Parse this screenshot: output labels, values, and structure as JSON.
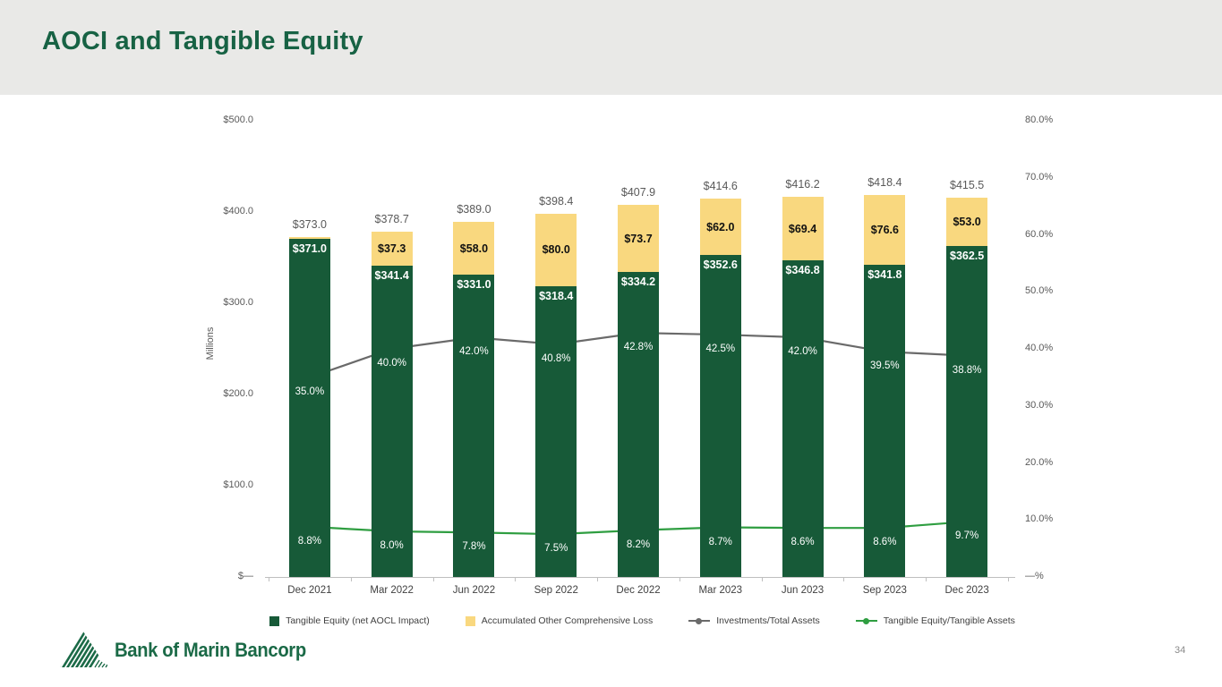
{
  "slide": {
    "title": "AOCI and Tangible Equity",
    "page_number": "34",
    "logo_text": "Bank of Marin Bancorp"
  },
  "chart_data": {
    "type": "combo-stacked-bar-line",
    "categories": [
      "Dec 2021",
      "Mar 2022",
      "Jun 2022",
      "Sep 2022",
      "Dec 2022",
      "Mar 2023",
      "Jun 2023",
      "Sep 2023",
      "Dec 2023"
    ],
    "totals": {
      "values": [
        373.0,
        378.7,
        389.0,
        398.4,
        407.9,
        414.6,
        416.2,
        418.4,
        415.5
      ],
      "labels": [
        "$373.0",
        "$378.7",
        "$389.0",
        "$398.4",
        "$407.9",
        "$414.6",
        "$416.2",
        "$418.4",
        "$415.5"
      ]
    },
    "series": [
      {
        "name": "Tangible Equity (net AOCL Impact)",
        "type": "bar",
        "color": "#175a38",
        "values": [
          371.0,
          341.4,
          331.0,
          318.4,
          334.2,
          352.6,
          346.8,
          341.8,
          362.5
        ],
        "labels": [
          "$371.0",
          "$341.4",
          "$331.0",
          "$318.4",
          "$334.2",
          "$352.6",
          "$346.8",
          "$341.8",
          "$362.5"
        ]
      },
      {
        "name": "Accumulated Other Comprehensive Loss",
        "type": "bar",
        "color": "#f9d87f",
        "values": [
          2.0,
          37.3,
          58.0,
          80.0,
          73.7,
          62.0,
          69.4,
          76.6,
          53.0
        ],
        "labels": [
          "",
          "$37.3",
          "$58.0",
          "$80.0",
          "$73.7",
          "$62.0",
          "$69.4",
          "$76.6",
          "$53.0"
        ]
      },
      {
        "name": "Investments/Total Assets",
        "type": "line",
        "axis": "right",
        "color": "#6a6a6a",
        "values": [
          35.0,
          40.0,
          42.0,
          40.8,
          42.8,
          42.5,
          42.0,
          39.5,
          38.8
        ],
        "labels": [
          "35.0%",
          "40.0%",
          "42.0%",
          "40.8%",
          "42.8%",
          "42.5%",
          "42.0%",
          "39.5%",
          "38.8%"
        ]
      },
      {
        "name": "Tangible Equity/Tangible Assets",
        "type": "line",
        "axis": "right",
        "color": "#2f9e41",
        "values": [
          8.8,
          8.0,
          7.8,
          7.5,
          8.2,
          8.7,
          8.6,
          8.6,
          9.7
        ],
        "labels": [
          "8.8%",
          "8.0%",
          "7.8%",
          "7.5%",
          "8.2%",
          "8.7%",
          "8.6%",
          "8.6%",
          "9.7%"
        ]
      }
    ],
    "left_axis": {
      "title": "Millions",
      "max": 500,
      "step": 100,
      "ticks": [
        "$—",
        "$100.0",
        "$200.0",
        "$300.0",
        "$400.0",
        "$500.0"
      ]
    },
    "right_axis": {
      "max": 80,
      "step": 10,
      "ticks": [
        "—%",
        "10.0%",
        "20.0%",
        "30.0%",
        "40.0%",
        "50.0%",
        "60.0%",
        "70.0%",
        "80.0%"
      ]
    },
    "legend_position": "bottom",
    "grid": false
  }
}
